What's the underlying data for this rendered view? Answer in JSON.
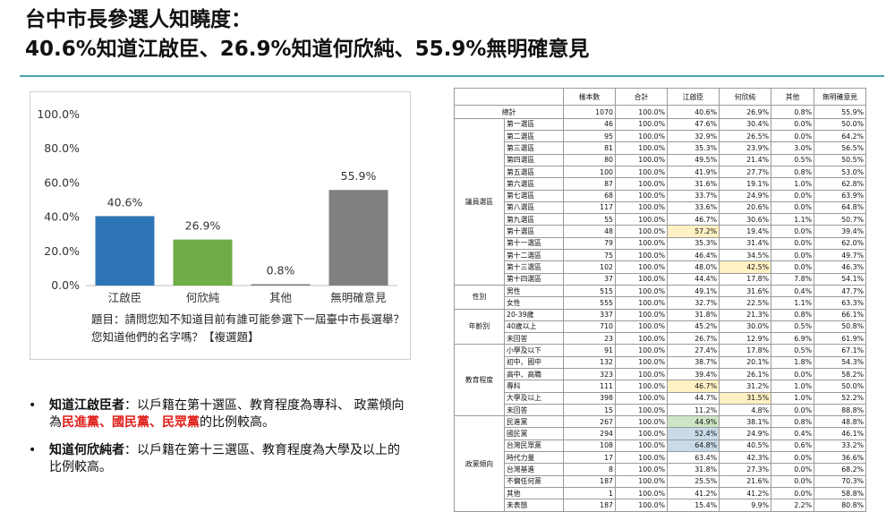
{
  "title": {
    "line1": "台中市長參選人知曉度：",
    "line2": "40.6%知道江啟臣、26.9%知道何欣純、55.9%無明確意見"
  },
  "chart_data": {
    "type": "bar",
    "categories": [
      "江啟臣",
      "何欣純",
      "其他",
      "無明確意見"
    ],
    "values": [
      40.6,
      26.9,
      0.8,
      55.9
    ],
    "value_labels": [
      "40.6%",
      "26.9%",
      "0.8%",
      "55.9%"
    ],
    "colors": [
      "#2e75b6",
      "#70ad47",
      "#808080",
      "#808080"
    ],
    "ylim": [
      0,
      100
    ],
    "yticks": [
      "0.0%",
      "20.0%",
      "40.0%",
      "60.0%",
      "80.0%",
      "100.0%"
    ],
    "grid": false,
    "title": "",
    "xlabel": "",
    "ylabel": ""
  },
  "question": {
    "line1": "題目：請問您知不知道目前有誰可能參選下一屆臺中市長選舉？",
    "line2": "您知道他們的名字嗎？【複選題】"
  },
  "bullets": [
    {
      "lead": "知道江啟臣者",
      "text1": "：以戶籍在第十選區、教育程度為專科、 政黨傾向為",
      "red1": "民進黨",
      "sep1": "、",
      "red2": "國民黨",
      "sep2": "、",
      "red3": "民眾黨",
      "text2": "的比例較高。"
    },
    {
      "lead": "知道何欣純者",
      "text1": "：以戶籍在第十三選區、教育程度為大學及以上的比例較高。"
    }
  ],
  "table": {
    "headers": [
      "樣本數",
      "合計",
      "江啟臣",
      "何欣純",
      "其他",
      "無明確意見"
    ],
    "total": {
      "label": "總計",
      "values": [
        "1070",
        "100.0%",
        "40.6%",
        "26.9%",
        "0.8%",
        "55.9%"
      ]
    },
    "groups": [
      {
        "name": "議員選區",
        "rows": [
          {
            "label": "第一選區",
            "values": [
              "46",
              "100.0%",
              "47.6%",
              "30.4%",
              "0.0%",
              "50.0%"
            ]
          },
          {
            "label": "第二選區",
            "values": [
              "95",
              "100.0%",
              "32.9%",
              "26.5%",
              "0.0%",
              "64.2%"
            ]
          },
          {
            "label": "第三選區",
            "values": [
              "81",
              "100.0%",
              "35.3%",
              "23.9%",
              "3.0%",
              "56.5%"
            ]
          },
          {
            "label": "第四選區",
            "values": [
              "80",
              "100.0%",
              "49.5%",
              "21.4%",
              "0.5%",
              "50.5%"
            ]
          },
          {
            "label": "第五選區",
            "values": [
              "100",
              "100.0%",
              "41.9%",
              "27.7%",
              "0.8%",
              "53.0%"
            ]
          },
          {
            "label": "第六選區",
            "values": [
              "87",
              "100.0%",
              "31.6%",
              "19.1%",
              "1.0%",
              "62.8%"
            ]
          },
          {
            "label": "第七選區",
            "values": [
              "68",
              "100.0%",
              "33.7%",
              "24.9%",
              "0.0%",
              "63.9%"
            ]
          },
          {
            "label": "第八選區",
            "values": [
              "117",
              "100.0%",
              "33.6%",
              "20.6%",
              "0.0%",
              "64.8%"
            ]
          },
          {
            "label": "第九選區",
            "values": [
              "55",
              "100.0%",
              "46.7%",
              "30.6%",
              "1.1%",
              "50.7%"
            ]
          },
          {
            "label": "第十選區",
            "values": [
              "48",
              "100.0%",
              "57.2%",
              "19.4%",
              "0.0%",
              "39.4%"
            ],
            "hl": {
              "2": "y"
            }
          },
          {
            "label": "第十一選區",
            "values": [
              "79",
              "100.0%",
              "35.3%",
              "31.4%",
              "0.0%",
              "62.0%"
            ]
          },
          {
            "label": "第十二選區",
            "values": [
              "75",
              "100.0%",
              "46.4%",
              "34.5%",
              "0.0%",
              "49.7%"
            ]
          },
          {
            "label": "第十三選區",
            "values": [
              "102",
              "100.0%",
              "48.0%",
              "42.5%",
              "0.0%",
              "46.3%"
            ],
            "hl": {
              "3": "y"
            }
          },
          {
            "label": "第十四選區",
            "values": [
              "37",
              "100.0%",
              "44.4%",
              "17.8%",
              "7.8%",
              "54.1%"
            ]
          }
        ]
      },
      {
        "name": "性別",
        "rows": [
          {
            "label": "男性",
            "values": [
              "515",
              "100.0%",
              "49.1%",
              "31.6%",
              "0.4%",
              "47.7%"
            ]
          },
          {
            "label": "女性",
            "values": [
              "555",
              "100.0%",
              "32.7%",
              "22.5%",
              "1.1%",
              "63.3%"
            ]
          }
        ]
      },
      {
        "name": "年齡別",
        "rows": [
          {
            "label": "20-39歲",
            "values": [
              "337",
              "100.0%",
              "31.8%",
              "21.3%",
              "0.8%",
              "66.1%"
            ]
          },
          {
            "label": "40歲以上",
            "values": [
              "710",
              "100.0%",
              "45.2%",
              "30.0%",
              "0.5%",
              "50.8%"
            ]
          },
          {
            "label": "未回答",
            "values": [
              "23",
              "100.0%",
              "26.7%",
              "12.9%",
              "6.9%",
              "61.9%"
            ]
          }
        ]
      },
      {
        "name": "教育程度",
        "rows": [
          {
            "label": "小學及以下",
            "values": [
              "91",
              "100.0%",
              "27.4%",
              "17.8%",
              "0.5%",
              "67.1%"
            ]
          },
          {
            "label": "初中、國中",
            "values": [
              "132",
              "100.0%",
              "38.7%",
              "20.1%",
              "1.8%",
              "54.3%"
            ]
          },
          {
            "label": "高中、高職",
            "values": [
              "323",
              "100.0%",
              "39.4%",
              "26.1%",
              "0.0%",
              "58.2%"
            ]
          },
          {
            "label": "專科",
            "values": [
              "111",
              "100.0%",
              "46.7%",
              "31.2%",
              "1.0%",
              "50.0%"
            ],
            "hl": {
              "2": "y"
            }
          },
          {
            "label": "大學及以上",
            "values": [
              "398",
              "100.0%",
              "44.7%",
              "31.5%",
              "1.0%",
              "52.2%"
            ],
            "hl": {
              "3": "y"
            }
          },
          {
            "label": "未回答",
            "values": [
              "15",
              "100.0%",
              "11.2%",
              "4.8%",
              "0.0%",
              "88.8%"
            ]
          }
        ]
      },
      {
        "name": "政黨傾向",
        "rows": [
          {
            "label": "民進黨",
            "values": [
              "267",
              "100.0%",
              "44.9%",
              "38.1%",
              "0.8%",
              "48.8%"
            ],
            "hl": {
              "2": "g"
            }
          },
          {
            "label": "國民黨",
            "values": [
              "294",
              "100.0%",
              "52.4%",
              "24.9%",
              "0.4%",
              "46.1%"
            ],
            "hl": {
              "2": "b"
            }
          },
          {
            "label": "台灣民眾黨",
            "values": [
              "108",
              "100.0%",
              "64.8%",
              "40.5%",
              "0.6%",
              "33.2%"
            ],
            "hl": {
              "2": "b"
            }
          },
          {
            "label": "時代力量",
            "values": [
              "17",
              "100.0%",
              "63.4%",
              "42.3%",
              "0.0%",
              "36.6%"
            ]
          },
          {
            "label": "台灣基進",
            "values": [
              "8",
              "100.0%",
              "31.8%",
              "27.3%",
              "0.0%",
              "68.2%"
            ]
          },
          {
            "label": "不偏任何黨",
            "values": [
              "187",
              "100.0%",
              "25.5%",
              "21.6%",
              "0.0%",
              "70.3%"
            ]
          },
          {
            "label": "其他",
            "values": [
              "1",
              "100.0%",
              "41.2%",
              "41.2%",
              "0.0%",
              "58.8%"
            ]
          },
          {
            "label": "未表態",
            "values": [
              "187",
              "100.0%",
              "15.4%",
              "9.9%",
              "2.2%",
              "80.8%"
            ]
          }
        ]
      }
    ]
  }
}
